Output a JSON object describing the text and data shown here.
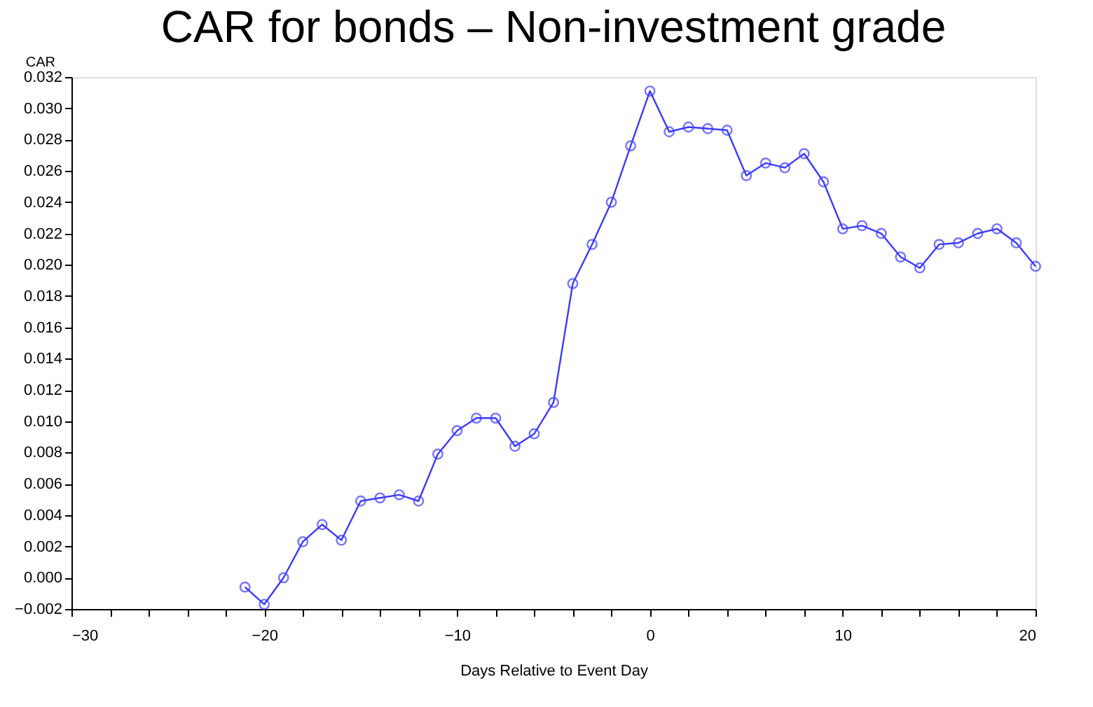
{
  "chart_data": {
    "type": "line",
    "title": "CAR for bonds – Non-investment grade",
    "xlabel": "Days Relative to Event Day",
    "ylabel": "CAR",
    "x": [
      -21,
      -20,
      -19,
      -18,
      -17,
      -16,
      -15,
      -14,
      -13,
      -12,
      -11,
      -10,
      -9,
      -8,
      -7,
      -6,
      -5,
      -4,
      -3,
      -2,
      -1,
      0,
      1,
      2,
      3,
      4,
      5,
      6,
      7,
      8,
      9,
      10,
      11,
      12,
      13,
      14,
      15,
      16,
      17,
      18,
      19,
      20
    ],
    "series": [
      {
        "color": "#3b3bff",
        "values": [
          -0.0006,
          -0.0017,
          0.0,
          0.0023,
          0.0034,
          0.0024,
          0.0049,
          0.0051,
          0.0053,
          0.0049,
          0.0079,
          0.0094,
          0.0102,
          0.0102,
          0.0084,
          0.0092,
          0.0112,
          0.0188,
          0.0213,
          0.024,
          0.0276,
          0.0311,
          0.0285,
          0.0288,
          0.0287,
          0.0286,
          0.0257,
          0.0265,
          0.0262,
          0.0271,
          0.0253,
          0.0223,
          0.0225,
          0.022,
          0.0205,
          0.0198,
          0.0213,
          0.0214,
          0.022,
          0.0223,
          0.0214,
          0.0199
        ]
      }
    ],
    "xlim": [
      -30,
      20
    ],
    "xticks": [
      -30,
      {
        "value": -28,
        "label": null
      },
      {
        "value": -26,
        "label": null
      },
      {
        "value": -24,
        "label": null
      },
      {
        "value": -22,
        "label": null
      },
      -20,
      {
        "value": -18,
        "label": null
      },
      {
        "value": -16,
        "label": null
      },
      {
        "value": -14,
        "label": null
      },
      {
        "value": -12,
        "label": null
      },
      -10,
      {
        "value": -8,
        "label": null
      },
      {
        "value": -6,
        "label": null
      },
      {
        "value": -4,
        "label": null
      },
      {
        "value": -2,
        "label": null
      },
      0,
      {
        "value": 2,
        "label": null
      },
      {
        "value": 4,
        "label": null
      },
      {
        "value": 6,
        "label": null
      },
      {
        "value": 8,
        "label": null
      },
      10,
      {
        "value": 12,
        "label": null
      },
      {
        "value": 14,
        "label": null
      },
      {
        "value": 16,
        "label": null
      },
      {
        "value": 18,
        "label": null
      },
      20
    ],
    "ylim": [
      -0.002,
      0.032
    ],
    "yticks": [
      -0.002,
      {
        "value": 0,
        "label": "0.000"
      },
      0.002,
      0.004,
      0.006,
      0.008,
      {
        "value": 0.01,
        "label": "0.010"
      },
      0.012,
      0.014,
      0.016,
      0.018,
      {
        "value": 0.02,
        "label": "0.020"
      },
      0.022,
      0.024,
      0.026,
      0.028,
      {
        "value": 0.03,
        "label": "0.030"
      },
      0.032
    ],
    "marker": "circle",
    "line_style": "solid",
    "grid": false
  }
}
